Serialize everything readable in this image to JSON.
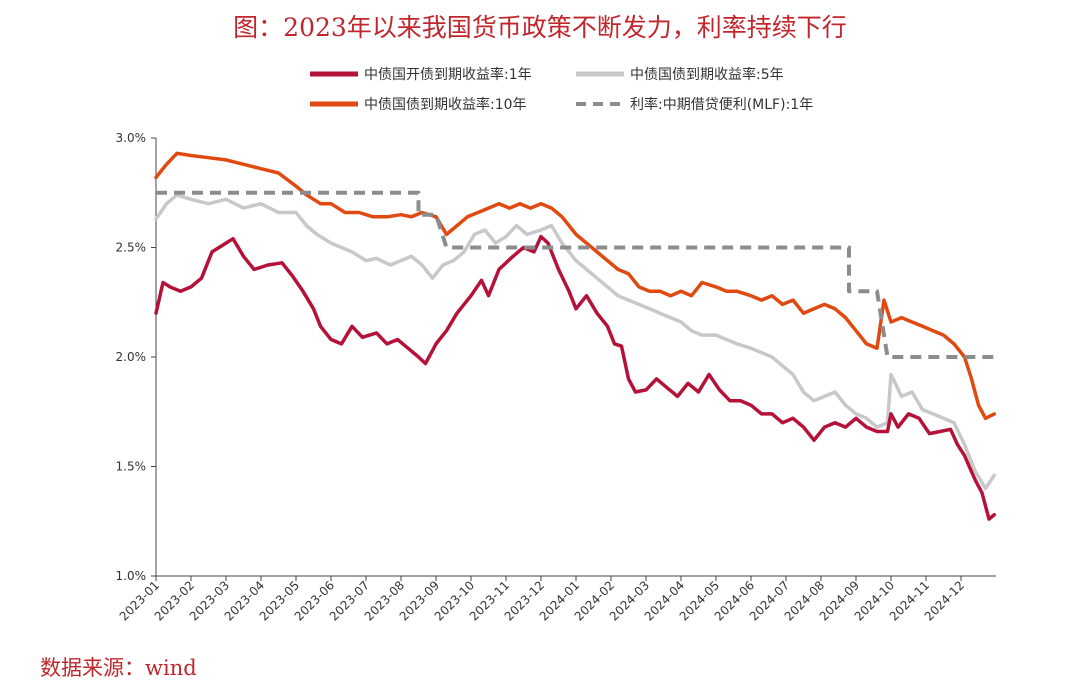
{
  "title": "图：2023年以来我国货币政策不断发力，利率持续下行",
  "source": "数据来源：wind",
  "colors": {
    "cdb1y": "#b5123a",
    "gov5y": "#c8c8c8",
    "gov10y": "#e04a10",
    "mlf": "#8c8c8c",
    "title": "#c0272d"
  },
  "chart_data": {
    "type": "line",
    "title": "图：2023年以来我国货币政策不断发力，利率持续下行",
    "xlabel": "",
    "ylabel": "",
    "ylim": [
      1.0,
      3.0
    ],
    "yticks": [
      "1.0%",
      "1.5%",
      "2.0%",
      "2.5%",
      "3.0%"
    ],
    "xticks": [
      "2023-01",
      "2023-02",
      "2023-03",
      "2023-04",
      "2023-05",
      "2023-06",
      "2023-07",
      "2023-08",
      "2023-09",
      "2023-10",
      "2023-11",
      "2023-12",
      "2024-01",
      "2024-02",
      "2024-03",
      "2024-04",
      "2024-05",
      "2024-06",
      "2024-07",
      "2024-08",
      "2024-09",
      "2024-10",
      "2024-11",
      "2024-12"
    ],
    "grid": false,
    "legend_position": "top",
    "x_unit": "month",
    "series": [
      {
        "name": "中债国开债到期收益率:1年",
        "key": "cdb1y",
        "style": "solid",
        "points": [
          [
            0,
            2.2
          ],
          [
            0.2,
            2.34
          ],
          [
            0.4,
            2.32
          ],
          [
            0.7,
            2.3
          ],
          [
            1.0,
            2.32
          ],
          [
            1.3,
            2.36
          ],
          [
            1.6,
            2.48
          ],
          [
            2.0,
            2.52
          ],
          [
            2.2,
            2.54
          ],
          [
            2.5,
            2.46
          ],
          [
            2.8,
            2.4
          ],
          [
            3.2,
            2.42
          ],
          [
            3.6,
            2.43
          ],
          [
            3.9,
            2.37
          ],
          [
            4.2,
            2.3
          ],
          [
            4.5,
            2.22
          ],
          [
            4.7,
            2.14
          ],
          [
            5.0,
            2.08
          ],
          [
            5.3,
            2.06
          ],
          [
            5.6,
            2.14
          ],
          [
            5.9,
            2.09
          ],
          [
            6.3,
            2.11
          ],
          [
            6.6,
            2.06
          ],
          [
            6.9,
            2.08
          ],
          [
            7.2,
            2.04
          ],
          [
            7.5,
            2.0
          ],
          [
            7.7,
            1.97
          ],
          [
            8.0,
            2.06
          ],
          [
            8.3,
            2.12
          ],
          [
            8.6,
            2.2
          ],
          [
            9.0,
            2.28
          ],
          [
            9.3,
            2.35
          ],
          [
            9.5,
            2.28
          ],
          [
            9.8,
            2.4
          ],
          [
            10.2,
            2.46
          ],
          [
            10.5,
            2.5
          ],
          [
            10.8,
            2.48
          ],
          [
            11.0,
            2.55
          ],
          [
            11.2,
            2.52
          ],
          [
            11.5,
            2.4
          ],
          [
            11.8,
            2.3
          ],
          [
            12.0,
            2.22
          ],
          [
            12.3,
            2.28
          ],
          [
            12.6,
            2.2
          ],
          [
            12.9,
            2.14
          ],
          [
            13.1,
            2.06
          ],
          [
            13.3,
            2.05
          ],
          [
            13.5,
            1.9
          ],
          [
            13.7,
            1.84
          ],
          [
            14.0,
            1.85
          ],
          [
            14.3,
            1.9
          ],
          [
            14.6,
            1.86
          ],
          [
            14.9,
            1.82
          ],
          [
            15.2,
            1.88
          ],
          [
            15.5,
            1.84
          ],
          [
            15.8,
            1.92
          ],
          [
            16.1,
            1.85
          ],
          [
            16.4,
            1.8
          ],
          [
            16.7,
            1.8
          ],
          [
            17.0,
            1.78
          ],
          [
            17.3,
            1.74
          ],
          [
            17.6,
            1.74
          ],
          [
            17.9,
            1.7
          ],
          [
            18.2,
            1.72
          ],
          [
            18.5,
            1.68
          ],
          [
            18.8,
            1.62
          ],
          [
            19.1,
            1.68
          ],
          [
            19.4,
            1.7
          ],
          [
            19.7,
            1.68
          ],
          [
            20.0,
            1.72
          ],
          [
            20.3,
            1.68
          ],
          [
            20.6,
            1.66
          ],
          [
            20.9,
            1.66
          ],
          [
            21.0,
            1.74
          ],
          [
            21.2,
            1.68
          ],
          [
            21.5,
            1.74
          ],
          [
            21.8,
            1.72
          ],
          [
            22.1,
            1.65
          ],
          [
            22.4,
            1.66
          ],
          [
            22.7,
            1.67
          ],
          [
            22.9,
            1.6
          ],
          [
            23.1,
            1.55
          ],
          [
            23.4,
            1.44
          ],
          [
            23.6,
            1.38
          ],
          [
            23.8,
            1.26
          ],
          [
            23.95,
            1.28
          ]
        ]
      },
      {
        "name": "中债国债到期收益率:5年",
        "key": "gov5y",
        "style": "solid",
        "points": [
          [
            0,
            2.63
          ],
          [
            0.3,
            2.7
          ],
          [
            0.6,
            2.74
          ],
          [
            1.0,
            2.72
          ],
          [
            1.5,
            2.7
          ],
          [
            2.0,
            2.72
          ],
          [
            2.5,
            2.68
          ],
          [
            3.0,
            2.7
          ],
          [
            3.5,
            2.66
          ],
          [
            4.0,
            2.66
          ],
          [
            4.3,
            2.6
          ],
          [
            4.6,
            2.56
          ],
          [
            5.0,
            2.52
          ],
          [
            5.3,
            2.5
          ],
          [
            5.6,
            2.48
          ],
          [
            6.0,
            2.44
          ],
          [
            6.3,
            2.45
          ],
          [
            6.7,
            2.42
          ],
          [
            7.0,
            2.44
          ],
          [
            7.3,
            2.46
          ],
          [
            7.6,
            2.42
          ],
          [
            7.9,
            2.36
          ],
          [
            8.2,
            2.42
          ],
          [
            8.5,
            2.44
          ],
          [
            8.8,
            2.48
          ],
          [
            9.1,
            2.56
          ],
          [
            9.4,
            2.58
          ],
          [
            9.7,
            2.52
          ],
          [
            10.0,
            2.55
          ],
          [
            10.3,
            2.6
          ],
          [
            10.6,
            2.56
          ],
          [
            11.0,
            2.58
          ],
          [
            11.3,
            2.6
          ],
          [
            11.6,
            2.52
          ],
          [
            12.0,
            2.44
          ],
          [
            12.3,
            2.4
          ],
          [
            12.6,
            2.36
          ],
          [
            12.9,
            2.32
          ],
          [
            13.2,
            2.28
          ],
          [
            13.5,
            2.26
          ],
          [
            13.8,
            2.24
          ],
          [
            14.1,
            2.22
          ],
          [
            14.4,
            2.2
          ],
          [
            14.7,
            2.18
          ],
          [
            15.0,
            2.16
          ],
          [
            15.3,
            2.12
          ],
          [
            15.6,
            2.1
          ],
          [
            16.0,
            2.1
          ],
          [
            16.3,
            2.08
          ],
          [
            16.6,
            2.06
          ],
          [
            17.0,
            2.04
          ],
          [
            17.3,
            2.02
          ],
          [
            17.6,
            2.0
          ],
          [
            17.9,
            1.96
          ],
          [
            18.2,
            1.92
          ],
          [
            18.5,
            1.84
          ],
          [
            18.8,
            1.8
          ],
          [
            19.1,
            1.82
          ],
          [
            19.4,
            1.84
          ],
          [
            19.7,
            1.78
          ],
          [
            20.0,
            1.74
          ],
          [
            20.3,
            1.72
          ],
          [
            20.6,
            1.68
          ],
          [
            20.9,
            1.7
          ],
          [
            21.0,
            1.92
          ],
          [
            21.3,
            1.82
          ],
          [
            21.6,
            1.84
          ],
          [
            21.9,
            1.76
          ],
          [
            22.2,
            1.74
          ],
          [
            22.5,
            1.72
          ],
          [
            22.8,
            1.7
          ],
          [
            23.1,
            1.6
          ],
          [
            23.4,
            1.48
          ],
          [
            23.7,
            1.4
          ],
          [
            23.95,
            1.46
          ]
        ]
      },
      {
        "name": "中债国债到期收益率:10年",
        "key": "gov10y",
        "style": "solid",
        "points": [
          [
            0,
            2.82
          ],
          [
            0.3,
            2.88
          ],
          [
            0.6,
            2.93
          ],
          [
            1.0,
            2.92
          ],
          [
            1.5,
            2.91
          ],
          [
            2.0,
            2.9
          ],
          [
            2.5,
            2.88
          ],
          [
            3.0,
            2.86
          ],
          [
            3.5,
            2.84
          ],
          [
            4.0,
            2.78
          ],
          [
            4.3,
            2.74
          ],
          [
            4.7,
            2.7
          ],
          [
            5.0,
            2.7
          ],
          [
            5.4,
            2.66
          ],
          [
            5.8,
            2.66
          ],
          [
            6.2,
            2.64
          ],
          [
            6.6,
            2.64
          ],
          [
            7.0,
            2.65
          ],
          [
            7.3,
            2.64
          ],
          [
            7.6,
            2.66
          ],
          [
            8.0,
            2.64
          ],
          [
            8.3,
            2.56
          ],
          [
            8.6,
            2.6
          ],
          [
            8.9,
            2.64
          ],
          [
            9.2,
            2.66
          ],
          [
            9.5,
            2.68
          ],
          [
            9.8,
            2.7
          ],
          [
            10.1,
            2.68
          ],
          [
            10.4,
            2.7
          ],
          [
            10.7,
            2.68
          ],
          [
            11.0,
            2.7
          ],
          [
            11.3,
            2.68
          ],
          [
            11.6,
            2.64
          ],
          [
            12.0,
            2.56
          ],
          [
            12.3,
            2.52
          ],
          [
            12.6,
            2.48
          ],
          [
            12.9,
            2.44
          ],
          [
            13.2,
            2.4
          ],
          [
            13.5,
            2.38
          ],
          [
            13.8,
            2.32
          ],
          [
            14.1,
            2.3
          ],
          [
            14.4,
            2.3
          ],
          [
            14.7,
            2.28
          ],
          [
            15.0,
            2.3
          ],
          [
            15.3,
            2.28
          ],
          [
            15.6,
            2.34
          ],
          [
            16.0,
            2.32
          ],
          [
            16.3,
            2.3
          ],
          [
            16.6,
            2.3
          ],
          [
            17.0,
            2.28
          ],
          [
            17.3,
            2.26
          ],
          [
            17.6,
            2.28
          ],
          [
            17.9,
            2.24
          ],
          [
            18.2,
            2.26
          ],
          [
            18.5,
            2.2
          ],
          [
            18.8,
            2.22
          ],
          [
            19.1,
            2.24
          ],
          [
            19.4,
            2.22
          ],
          [
            19.7,
            2.18
          ],
          [
            20.0,
            2.12
          ],
          [
            20.3,
            2.06
          ],
          [
            20.6,
            2.04
          ],
          [
            20.8,
            2.26
          ],
          [
            21.0,
            2.16
          ],
          [
            21.3,
            2.18
          ],
          [
            21.6,
            2.16
          ],
          [
            21.9,
            2.14
          ],
          [
            22.2,
            2.12
          ],
          [
            22.5,
            2.1
          ],
          [
            22.8,
            2.06
          ],
          [
            23.1,
            2.0
          ],
          [
            23.3,
            1.9
          ],
          [
            23.5,
            1.78
          ],
          [
            23.7,
            1.72
          ],
          [
            23.95,
            1.74
          ]
        ]
      },
      {
        "name": "利率:中期借贷便利(MLF):1年",
        "key": "mlf",
        "style": "dashed",
        "points": [
          [
            0,
            2.75
          ],
          [
            7.5,
            2.75
          ],
          [
            7.5,
            2.65
          ],
          [
            8.0,
            2.65
          ],
          [
            8.3,
            2.5
          ],
          [
            19.8,
            2.5
          ],
          [
            19.8,
            2.3
          ],
          [
            20.0,
            2.3
          ],
          [
            20.6,
            2.3
          ],
          [
            20.9,
            2.0
          ],
          [
            24.0,
            2.0
          ]
        ]
      }
    ]
  }
}
